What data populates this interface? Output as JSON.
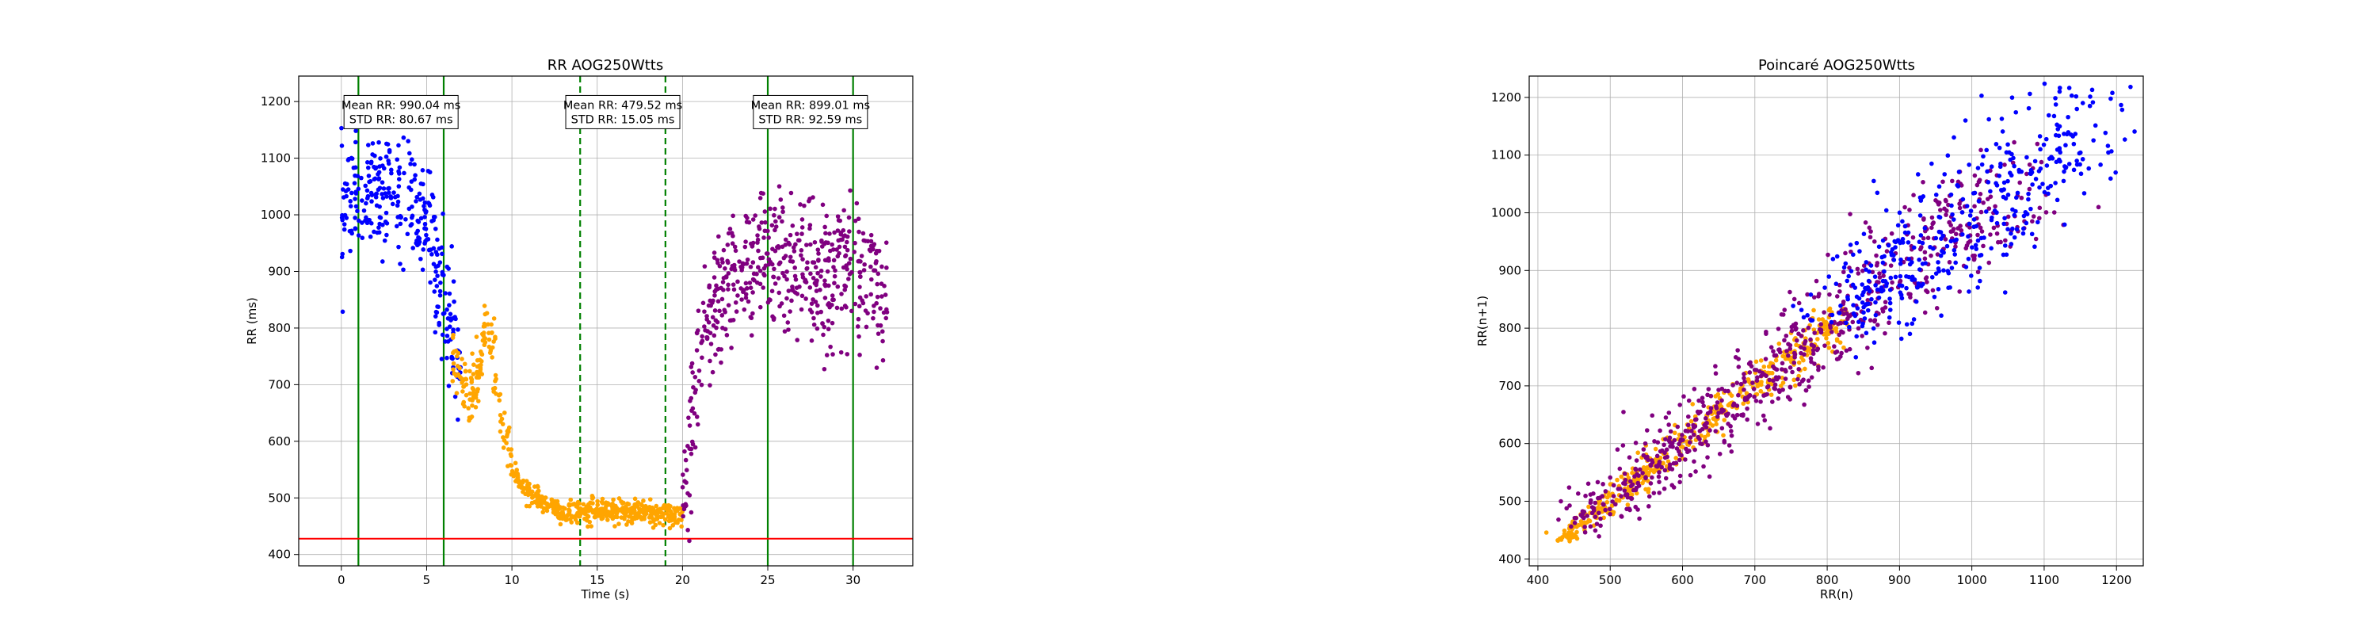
{
  "chart_data": [
    {
      "type": "scatter",
      "title": "RR AOG250Wtts",
      "xlabel": "Time (s)",
      "ylabel": "RR (ms)",
      "xlim": [
        -2.5,
        33.5
      ],
      "ylim": [
        380,
        1245
      ],
      "xticks": [
        0,
        5,
        10,
        15,
        20,
        25,
        30
      ],
      "yticks": [
        400,
        500,
        600,
        700,
        800,
        900,
        1000,
        1100,
        1200
      ],
      "grid": true,
      "colors": {
        "phase1": "#0000ff",
        "phase2": "#ffa500",
        "phase3": "#800080",
        "threshold": "#ff0000",
        "markers": "#008000"
      },
      "threshold_line": 428,
      "vertical_lines": [
        {
          "x": 1.0,
          "style": "solid"
        },
        {
          "x": 6.0,
          "style": "solid"
        },
        {
          "x": 14.0,
          "style": "dashed"
        },
        {
          "x": 19.0,
          "style": "dashed"
        },
        {
          "x": 25.0,
          "style": "solid"
        },
        {
          "x": 30.0,
          "style": "solid"
        }
      ],
      "annotations": [
        {
          "x": 3.5,
          "y": 1180,
          "lines": [
            "Mean RR: 990.04 ms",
            "STD RR: 80.67 ms"
          ]
        },
        {
          "x": 16.5,
          "y": 1180,
          "lines": [
            "Mean RR: 479.52 ms",
            "STD RR: 15.05 ms"
          ]
        },
        {
          "x": 27.5,
          "y": 1180,
          "lines": [
            "Mean RR: 899.01 ms",
            "STD RR: 92.59 ms"
          ]
        }
      ],
      "series": [
        {
          "color": "#0000ff",
          "shape": "cloud",
          "x": [
            0,
            1,
            2,
            3,
            4,
            5,
            5.5,
            6,
            6.5,
            7
          ],
          "y": [
            1010,
            1030,
            1040,
            1050,
            1030,
            990,
            920,
            850,
            790,
            740
          ],
          "spread": 75
        },
        {
          "color": "#ffa500",
          "shape": "cloud",
          "x": [
            6.5,
            7,
            7.5,
            8,
            8.5,
            9,
            9.5,
            10,
            10.5,
            11,
            12,
            13,
            14,
            15,
            16,
            17,
            18,
            19,
            20
          ],
          "y": [
            760,
            700,
            690,
            700,
            820,
            720,
            620,
            560,
            520,
            505,
            490,
            470,
            475,
            480,
            478,
            476,
            474,
            472,
            470
          ],
          "spread": 14
        },
        {
          "color": "#800080",
          "shape": "cloud",
          "x": [
            20,
            20.5,
            21,
            21.5,
            22,
            23,
            24,
            25,
            26,
            27,
            28,
            29,
            30,
            31,
            32
          ],
          "y": [
            480,
            640,
            740,
            810,
            850,
            880,
            900,
            910,
            920,
            905,
            880,
            890,
            920,
            890,
            820
          ],
          "spread": 85
        }
      ]
    },
    {
      "type": "scatter",
      "title": "Poincaré AOG250Wtts",
      "xlabel": "RR(n)",
      "ylabel": "RR(n+1)",
      "xlim": [
        388,
        1237
      ],
      "ylim": [
        388,
        1237
      ],
      "xticks": [
        400,
        500,
        600,
        700,
        800,
        900,
        1000,
        1100,
        1200
      ],
      "yticks": [
        400,
        500,
        600,
        700,
        800,
        900,
        1000,
        1100,
        1200
      ],
      "grid": true,
      "series": [
        {
          "color": "#ffa500",
          "shape": "diagonal",
          "range": [
            430,
            820
          ],
          "spread": 25
        },
        {
          "color": "#800080",
          "shape": "diagonal",
          "range": [
            460,
            1060
          ],
          "spread": 55
        },
        {
          "color": "#0000ff",
          "shape": "diagonal",
          "range": [
            820,
            1180
          ],
          "spread": 60
        }
      ]
    }
  ]
}
